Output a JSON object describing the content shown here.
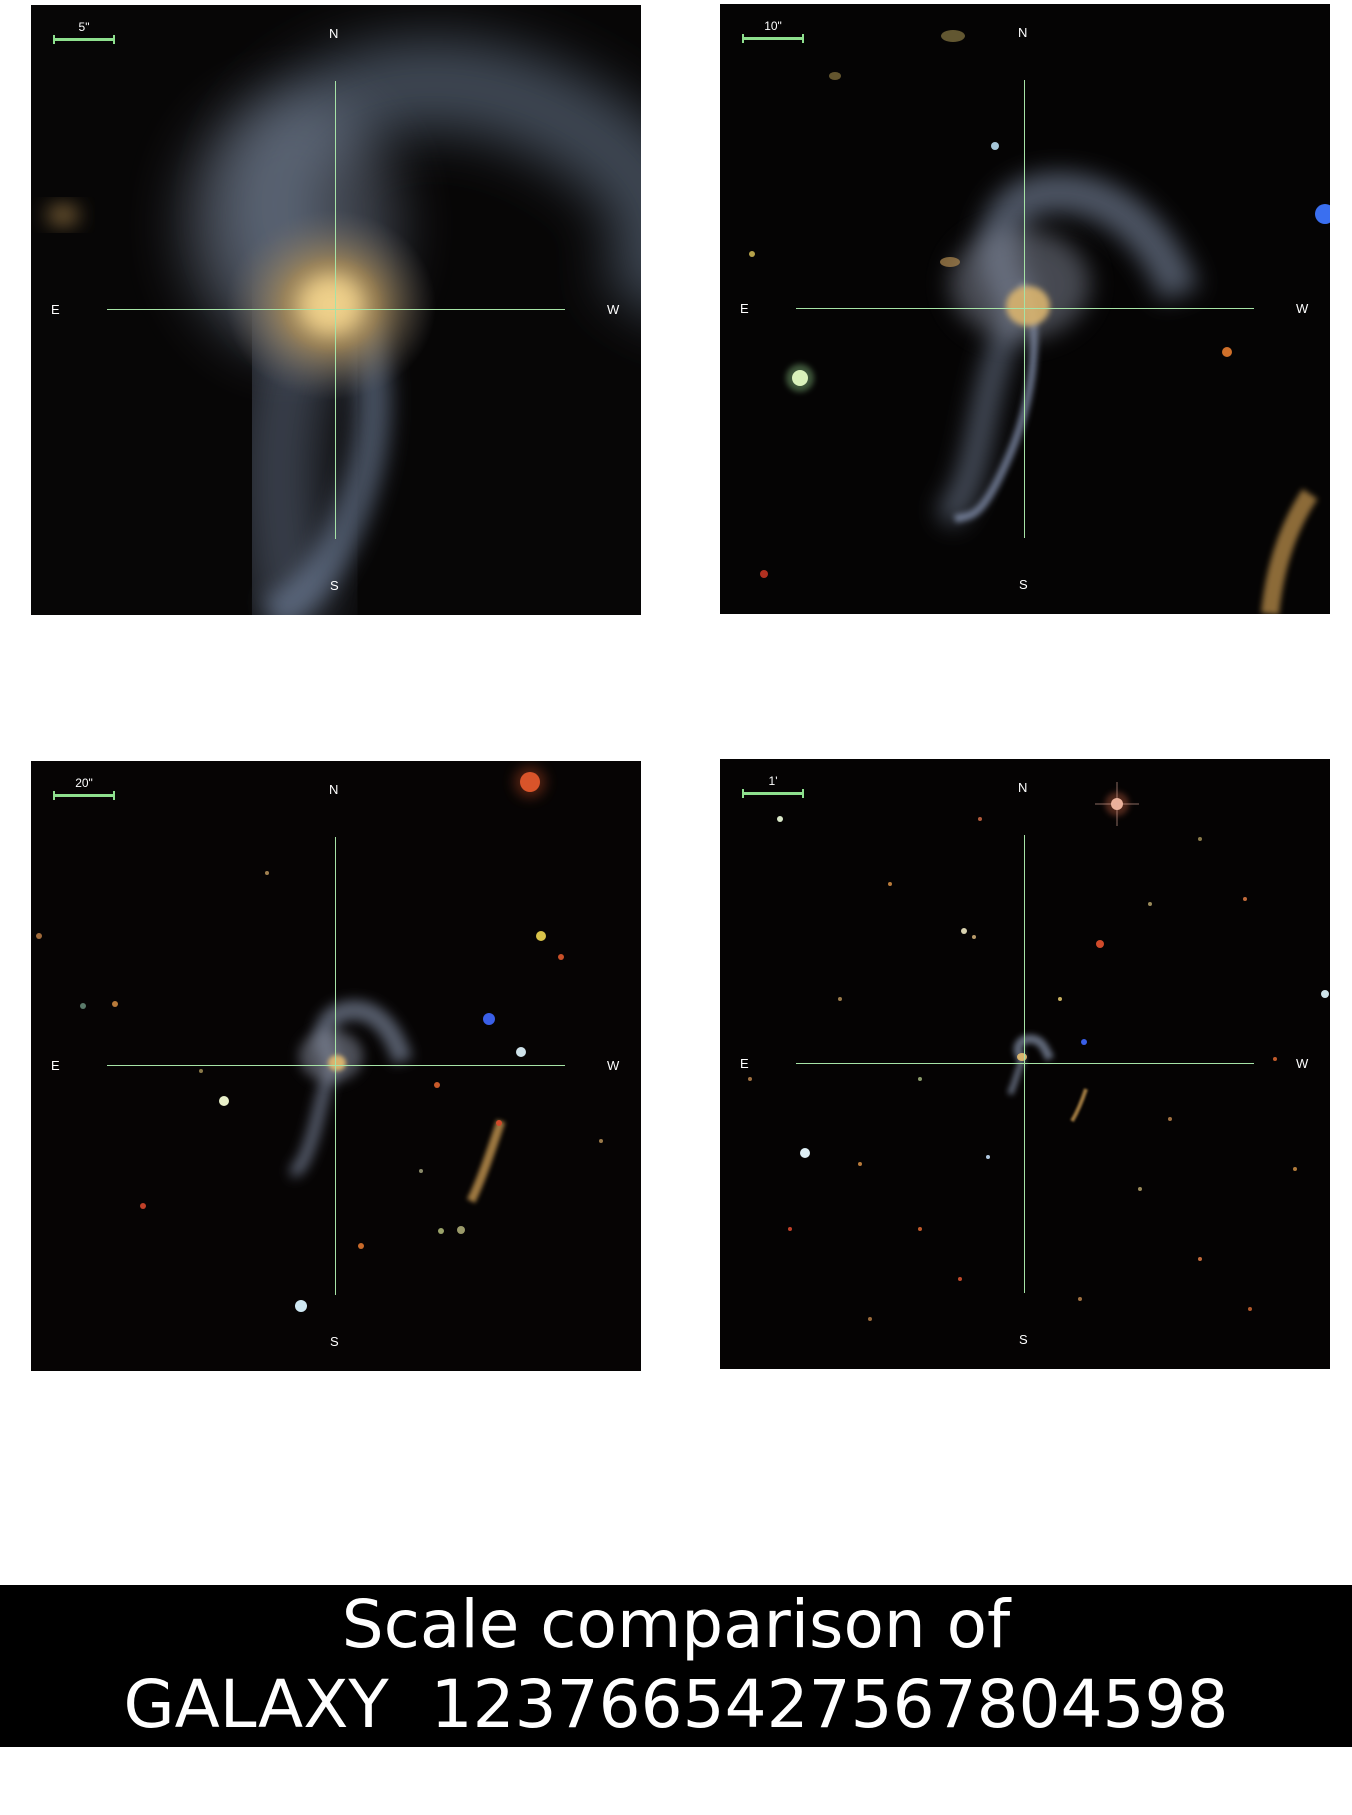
{
  "panels": [
    {
      "scale_label": "5\"",
      "north": "N",
      "south": "S",
      "east": "E",
      "west": "W"
    },
    {
      "scale_label": "10\"",
      "north": "N",
      "south": "S",
      "east": "E",
      "west": "W"
    },
    {
      "scale_label": "20\"",
      "north": "N",
      "south": "S",
      "east": "E",
      "west": "W"
    },
    {
      "scale_label": "1'",
      "north": "N",
      "south": "S",
      "east": "E",
      "west": "W"
    }
  ],
  "caption": {
    "line1": "Scale comparison of",
    "line2": "GALAXY  1237665427567804598"
  },
  "colors": {
    "sky_background": "#050404",
    "crosshair": "#a6e3a6",
    "scale_bar": "#8ee08e",
    "caption_background": "#000000",
    "caption_text": "#ffffff"
  }
}
